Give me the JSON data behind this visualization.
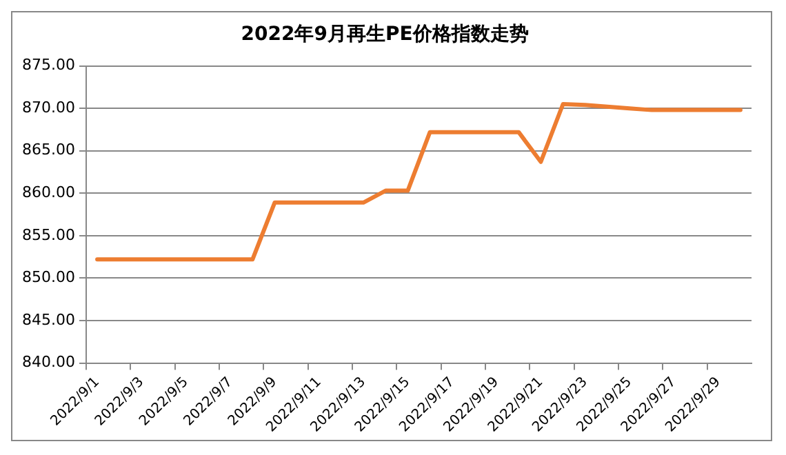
{
  "chart_data": {
    "type": "line",
    "title": "2022年9月再生PE价格指数走势",
    "categories": [
      "2022/9/1",
      null,
      "2022/9/3",
      null,
      "2022/9/5",
      null,
      "2022/9/7",
      null,
      "2022/9/9",
      null,
      "2022/9/11",
      null,
      "2022/9/13",
      null,
      "2022/9/15",
      null,
      "2022/9/17",
      null,
      "2022/9/19",
      null,
      "2022/9/21",
      null,
      "2022/9/23",
      null,
      "2022/9/25",
      null,
      "2022/9/27",
      null,
      "2022/9/29",
      null
    ],
    "series": [
      {
        "color": "#ed7d31",
        "values": [
          852.2,
          852.2,
          852.2,
          852.2,
          852.2,
          852.2,
          852.2,
          852.2,
          858.9,
          858.9,
          858.9,
          858.9,
          858.9,
          860.3,
          860.3,
          867.2,
          867.2,
          867.2,
          867.2,
          867.2,
          863.7,
          870.5,
          870.4,
          870.2,
          870.0,
          869.8,
          869.8,
          869.8,
          869.8,
          869.8
        ]
      }
    ],
    "ylim": [
      840,
      875
    ],
    "yticks": [
      {
        "value": 840,
        "label": "840.00"
      },
      {
        "value": 845,
        "label": "845.00"
      },
      {
        "value": 850,
        "label": "850.00"
      },
      {
        "value": 855,
        "label": "855.00"
      },
      {
        "value": 860,
        "label": "860.00"
      },
      {
        "value": 865,
        "label": "865.00"
      },
      {
        "value": 870,
        "label": "870.00"
      },
      {
        "value": 875,
        "label": "875.00"
      }
    ],
    "grid": "y",
    "legend": false,
    "marker": "none",
    "line_style": "solid"
  }
}
